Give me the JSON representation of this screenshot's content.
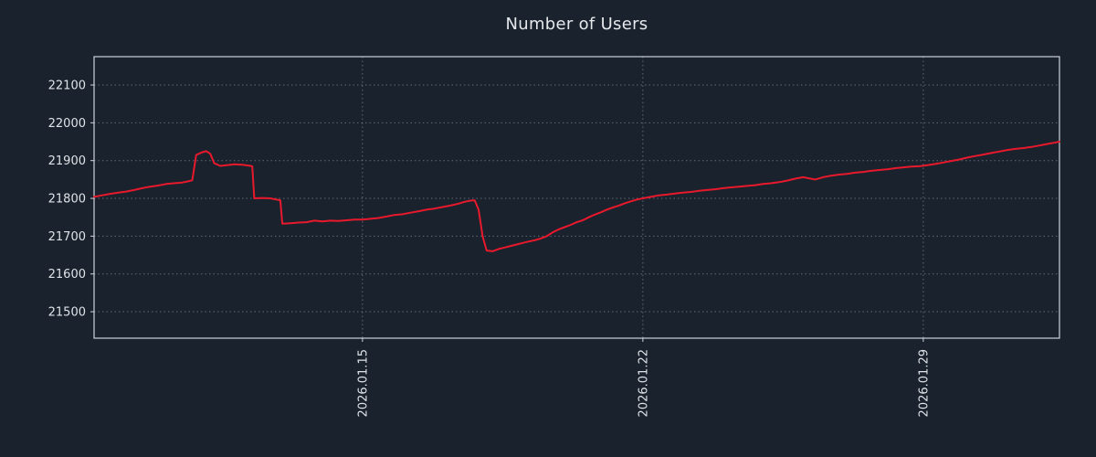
{
  "chart_data": {
    "type": "line",
    "title": "Number of Users",
    "xlabel": "",
    "ylabel": "",
    "grid": true,
    "legend": "none",
    "background": "#1a222d",
    "text_color": "#dfe3e8",
    "grid_color": "#9aa5b1",
    "border_color": "#ccd3db",
    "xlim": [
      8.3,
      32.4
    ],
    "ylim": [
      21430,
      22175
    ],
    "yticks": [
      21500,
      21600,
      21700,
      21800,
      21900,
      22000,
      22100
    ],
    "xticks": [
      {
        "pos": 15,
        "label": "2026.01.15"
      },
      {
        "pos": 22,
        "label": "2026.01.22"
      },
      {
        "pos": 29,
        "label": "2026.01.29"
      }
    ],
    "series": [
      {
        "name": "Number of Users",
        "color": "#e8192c",
        "points": [
          [
            8.3,
            21804
          ],
          [
            8.5,
            21808
          ],
          [
            8.7,
            21812
          ],
          [
            8.9,
            21815
          ],
          [
            9.1,
            21818
          ],
          [
            9.3,
            21822
          ],
          [
            9.5,
            21827
          ],
          [
            9.7,
            21831
          ],
          [
            9.9,
            21834
          ],
          [
            10.1,
            21838
          ],
          [
            10.3,
            21840
          ],
          [
            10.5,
            21842
          ],
          [
            10.65,
            21845
          ],
          [
            10.75,
            21848
          ],
          [
            10.85,
            21915
          ],
          [
            11.0,
            21922
          ],
          [
            11.1,
            21925
          ],
          [
            11.2,
            21918
          ],
          [
            11.3,
            21893
          ],
          [
            11.45,
            21886
          ],
          [
            11.6,
            21888
          ],
          [
            11.8,
            21890
          ],
          [
            12.0,
            21889
          ],
          [
            12.15,
            21887
          ],
          [
            12.25,
            21885
          ],
          [
            12.3,
            21800
          ],
          [
            12.5,
            21801
          ],
          [
            12.7,
            21800
          ],
          [
            12.85,
            21797
          ],
          [
            12.95,
            21795
          ],
          [
            13.0,
            21733
          ],
          [
            13.2,
            21734
          ],
          [
            13.4,
            21736
          ],
          [
            13.6,
            21737
          ],
          [
            13.8,
            21741
          ],
          [
            14.0,
            21739
          ],
          [
            14.2,
            21741
          ],
          [
            14.4,
            21740
          ],
          [
            14.6,
            21742
          ],
          [
            14.8,
            21744
          ],
          [
            15.0,
            21744
          ],
          [
            15.2,
            21746
          ],
          [
            15.4,
            21748
          ],
          [
            15.6,
            21752
          ],
          [
            15.8,
            21756
          ],
          [
            16.0,
            21758
          ],
          [
            16.2,
            21762
          ],
          [
            16.4,
            21766
          ],
          [
            16.6,
            21770
          ],
          [
            16.8,
            21773
          ],
          [
            17.0,
            21777
          ],
          [
            17.2,
            21781
          ],
          [
            17.4,
            21786
          ],
          [
            17.55,
            21791
          ],
          [
            17.7,
            21794
          ],
          [
            17.8,
            21795
          ],
          [
            17.9,
            21770
          ],
          [
            18.0,
            21700
          ],
          [
            18.1,
            21662
          ],
          [
            18.25,
            21660
          ],
          [
            18.4,
            21666
          ],
          [
            18.55,
            21670
          ],
          [
            18.7,
            21674
          ],
          [
            18.85,
            21678
          ],
          [
            19.0,
            21682
          ],
          [
            19.15,
            21686
          ],
          [
            19.3,
            21689
          ],
          [
            19.45,
            21694
          ],
          [
            19.6,
            21700
          ],
          [
            19.75,
            21710
          ],
          [
            19.9,
            21718
          ],
          [
            20.05,
            21724
          ],
          [
            20.2,
            21730
          ],
          [
            20.35,
            21737
          ],
          [
            20.5,
            21742
          ],
          [
            20.65,
            21750
          ],
          [
            20.8,
            21757
          ],
          [
            20.95,
            21763
          ],
          [
            21.1,
            21770
          ],
          [
            21.25,
            21776
          ],
          [
            21.4,
            21781
          ],
          [
            21.55,
            21787
          ],
          [
            21.7,
            21792
          ],
          [
            21.85,
            21797
          ],
          [
            22.0,
            21800
          ],
          [
            22.2,
            21804
          ],
          [
            22.4,
            21808
          ],
          [
            22.6,
            21810
          ],
          [
            22.8,
            21813
          ],
          [
            23.0,
            21815
          ],
          [
            23.2,
            21817
          ],
          [
            23.4,
            21820
          ],
          [
            23.6,
            21822
          ],
          [
            23.8,
            21824
          ],
          [
            24.0,
            21827
          ],
          [
            24.2,
            21829
          ],
          [
            24.4,
            21831
          ],
          [
            24.6,
            21833
          ],
          [
            24.8,
            21835
          ],
          [
            25.0,
            21838
          ],
          [
            25.2,
            21840
          ],
          [
            25.4,
            21843
          ],
          [
            25.6,
            21847
          ],
          [
            25.8,
            21852
          ],
          [
            26.0,
            21856
          ],
          [
            26.15,
            21853
          ],
          [
            26.3,
            21850
          ],
          [
            26.5,
            21856
          ],
          [
            26.7,
            21860
          ],
          [
            26.9,
            21863
          ],
          [
            27.1,
            21865
          ],
          [
            27.3,
            21868
          ],
          [
            27.5,
            21870
          ],
          [
            27.7,
            21873
          ],
          [
            27.9,
            21875
          ],
          [
            28.1,
            21877
          ],
          [
            28.3,
            21880
          ],
          [
            28.5,
            21882
          ],
          [
            28.7,
            21884
          ],
          [
            28.9,
            21885
          ],
          [
            29.1,
            21888
          ],
          [
            29.3,
            21891
          ],
          [
            29.5,
            21895
          ],
          [
            29.7,
            21899
          ],
          [
            29.9,
            21903
          ],
          [
            30.1,
            21908
          ],
          [
            30.3,
            21912
          ],
          [
            30.5,
            21916
          ],
          [
            30.7,
            21920
          ],
          [
            30.9,
            21924
          ],
          [
            31.1,
            21928
          ],
          [
            31.3,
            21931
          ],
          [
            31.5,
            21933
          ],
          [
            31.7,
            21936
          ],
          [
            31.9,
            21940
          ],
          [
            32.1,
            21944
          ],
          [
            32.25,
            21947
          ],
          [
            32.4,
            21950
          ]
        ]
      }
    ]
  }
}
